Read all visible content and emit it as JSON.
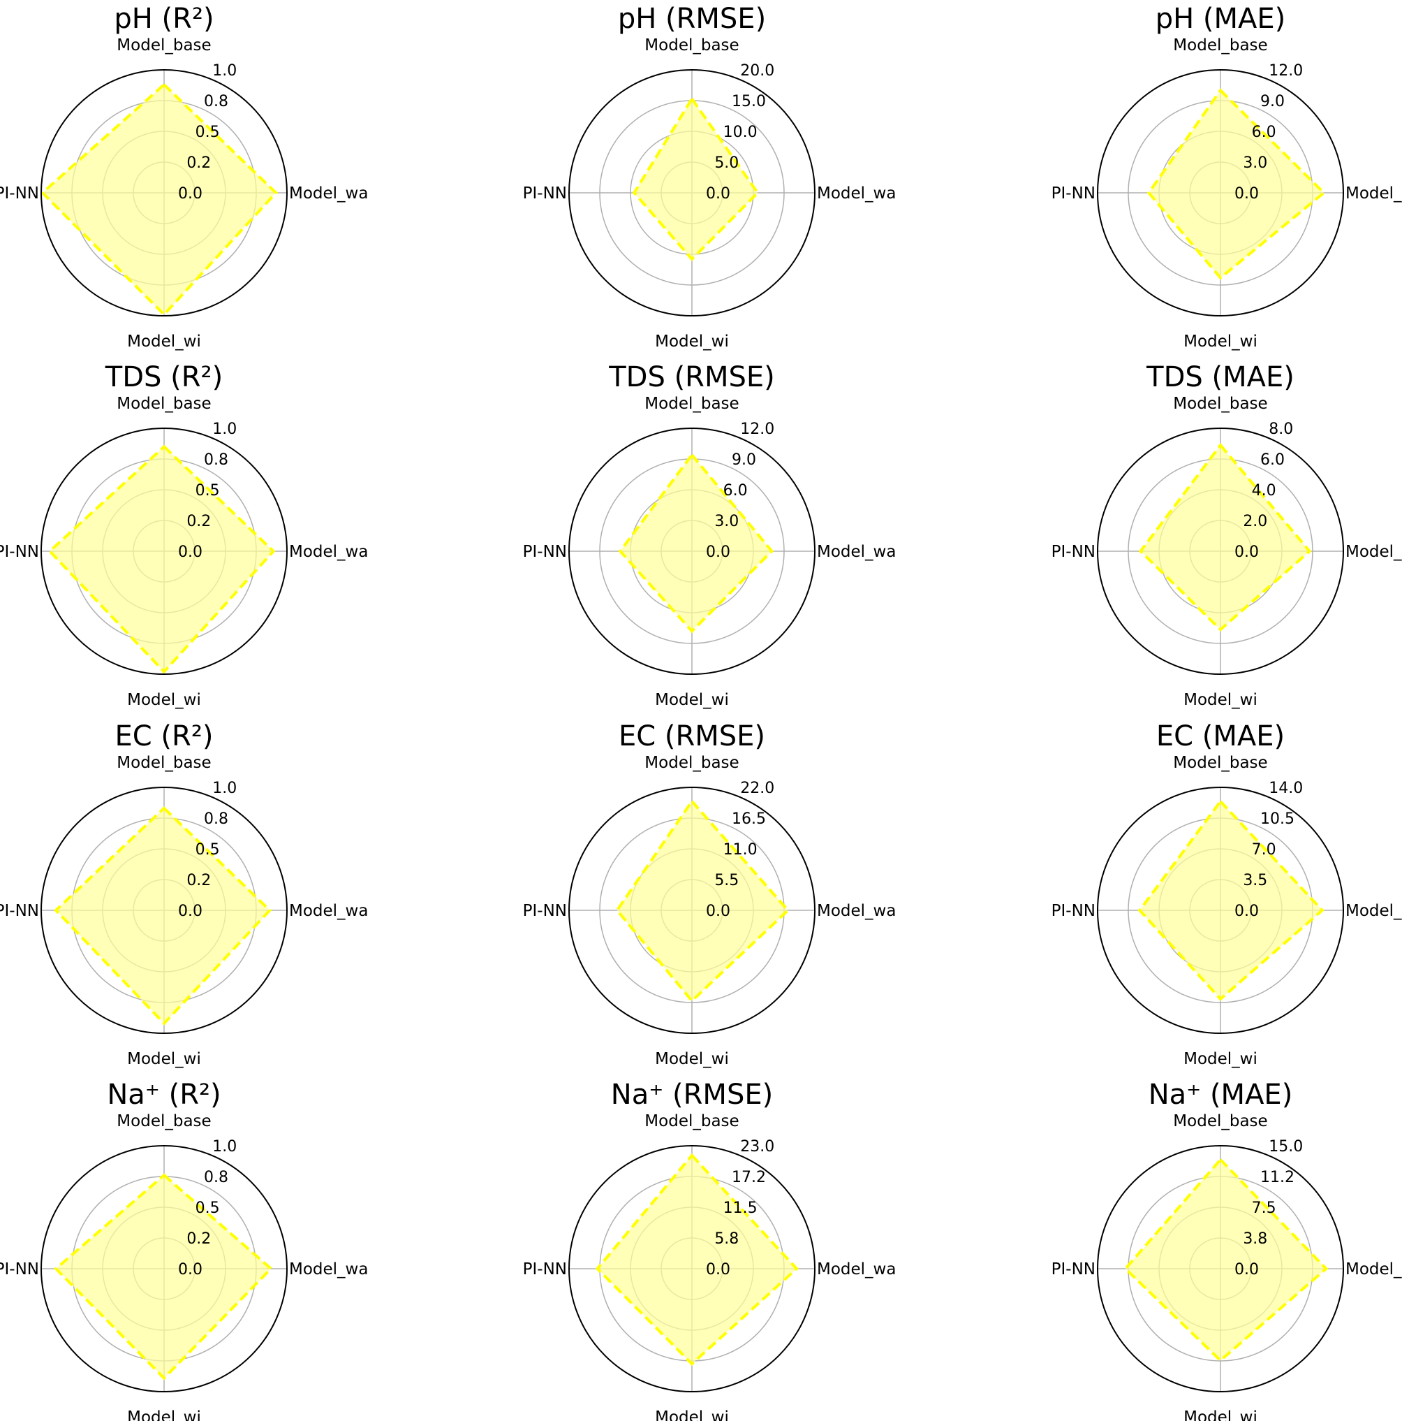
{
  "colors": {
    "fill": "#ffff99",
    "line": "#ffff00",
    "grid": "#b0b0b0",
    "outline": "#000000"
  },
  "chart_data": [
    {
      "type": "radar",
      "title": "pH (R²)",
      "metric": "R²",
      "categories": [
        "Model_base",
        "Model_wa",
        "Model_wi",
        "PI-NN"
      ],
      "values": [
        0.88,
        0.91,
        0.99,
        0.99
      ],
      "rlim": [
        0,
        1.0
      ],
      "tick_values": [
        0.0,
        0.25,
        0.5,
        0.75,
        1.0
      ],
      "tick_labels": [
        "0.0",
        "0.2",
        "0.5",
        "0.8",
        "1.0"
      ]
    },
    {
      "type": "radar",
      "title": "pH (RMSE)",
      "metric": "RMSE",
      "categories": [
        "Model_base",
        "Model_wa",
        "Model_wi",
        "PI-NN"
      ],
      "values": [
        15.3,
        10.7,
        10.8,
        9.4
      ],
      "rlim": [
        0,
        20.0
      ],
      "tick_values": [
        0.0,
        5.0,
        10.0,
        15.0,
        20.0
      ],
      "tick_labels": [
        "0.0",
        "5.0",
        "10.0",
        "15.0",
        "20.0"
      ]
    },
    {
      "type": "radar",
      "title": "pH (MAE)",
      "metric": "MAE",
      "categories": [
        "Model_base",
        "Model_wa",
        "Model_wi",
        "PI-NN"
      ],
      "values": [
        10.0,
        10.1,
        8.3,
        7.0
      ],
      "rlim": [
        0,
        12.0
      ],
      "tick_values": [
        0.0,
        3.0,
        6.0,
        9.0,
        12.0
      ],
      "tick_labels": [
        "0.0",
        "3.0",
        "6.0",
        "9.0",
        "12.0"
      ]
    },
    {
      "type": "radar",
      "title": "TDS (R²)",
      "metric": "R²",
      "categories": [
        "Model_base",
        "Model_wa",
        "Model_wi",
        "PI-NN"
      ],
      "values": [
        0.85,
        0.89,
        0.98,
        0.93
      ],
      "rlim": [
        0,
        1.0
      ],
      "tick_values": [
        0.0,
        0.25,
        0.5,
        0.75,
        1.0
      ],
      "tick_labels": [
        "0.0",
        "0.2",
        "0.5",
        "0.8",
        "1.0"
      ]
    },
    {
      "type": "radar",
      "title": "TDS (RMSE)",
      "metric": "RMSE",
      "categories": [
        "Model_base",
        "Model_wa",
        "Model_wi",
        "PI-NN"
      ],
      "values": [
        9.4,
        7.8,
        7.8,
        7.0
      ],
      "rlim": [
        0,
        12.0
      ],
      "tick_values": [
        0.0,
        3.0,
        6.0,
        9.0,
        12.0
      ],
      "tick_labels": [
        "0.0",
        "3.0",
        "6.0",
        "9.0",
        "12.0"
      ]
    },
    {
      "type": "radar",
      "title": "TDS (MAE)",
      "metric": "MAE",
      "categories": [
        "Model_base",
        "Model_wa",
        "Model_wi",
        "PI-NN"
      ],
      "values": [
        6.9,
        5.8,
        5.1,
        5.2
      ],
      "rlim": [
        0,
        8.0
      ],
      "tick_values": [
        0.0,
        2.0,
        4.0,
        6.0,
        8.0
      ],
      "tick_labels": [
        "0.0",
        "2.0",
        "4.0",
        "6.0",
        "8.0"
      ]
    },
    {
      "type": "radar",
      "title": "EC (R²)",
      "metric": "R²",
      "categories": [
        "Model_base",
        "Model_wa",
        "Model_wi",
        "PI-NN"
      ],
      "values": [
        0.83,
        0.86,
        0.92,
        0.88
      ],
      "rlim": [
        0,
        1.0
      ],
      "tick_values": [
        0.0,
        0.25,
        0.5,
        0.75,
        1.0
      ],
      "tick_labels": [
        "0.0",
        "0.2",
        "0.5",
        "0.8",
        "1.0"
      ]
    },
    {
      "type": "radar",
      "title": "EC (RMSE)",
      "metric": "RMSE",
      "categories": [
        "Model_base",
        "Model_wa",
        "Model_wi",
        "PI-NN"
      ],
      "values": [
        19.5,
        17.2,
        16.2,
        13.4
      ],
      "rlim": [
        0,
        22.0
      ],
      "tick_values": [
        0.0,
        5.5,
        11.0,
        16.5,
        22.0
      ],
      "tick_labels": [
        "0.0",
        "5.5",
        "11.0",
        "16.5",
        "22.0"
      ]
    },
    {
      "type": "radar",
      "title": "EC (MAE)",
      "metric": "MAE",
      "categories": [
        "Model_base",
        "Model_wa",
        "Model_wi",
        "PI-NN"
      ],
      "values": [
        12.4,
        11.6,
        10.1,
        9.2
      ],
      "rlim": [
        0,
        14.0
      ],
      "tick_values": [
        0.0,
        3.5,
        7.0,
        10.5,
        14.0
      ],
      "tick_labels": [
        "0.0",
        "3.5",
        "7.0",
        "10.5",
        "14.0"
      ]
    },
    {
      "type": "radar",
      "title": "Na⁺ (R²)",
      "metric": "R²",
      "categories": [
        "Model_base",
        "Model_wa",
        "Model_wi",
        "PI-NN"
      ],
      "values": [
        0.76,
        0.87,
        0.89,
        0.88
      ],
      "rlim": [
        0,
        1.0
      ],
      "tick_values": [
        0.0,
        0.25,
        0.5,
        0.75,
        1.0
      ],
      "tick_labels": [
        "0.0",
        "0.2",
        "0.5",
        "0.8",
        "1.0"
      ]
    },
    {
      "type": "radar",
      "title": "Na⁺ (RMSE)",
      "metric": "RMSE",
      "categories": [
        "Model_base",
        "Model_wa",
        "Model_wi",
        "PI-NN"
      ],
      "values": [
        21.2,
        19.6,
        17.8,
        17.7
      ],
      "rlim": [
        0,
        23.0
      ],
      "tick_values": [
        0.0,
        5.75,
        11.5,
        17.25,
        23.0
      ],
      "tick_labels": [
        "0.0",
        "5.8",
        "11.5",
        "17.2",
        "23.0"
      ]
    },
    {
      "type": "radar",
      "title": "Na⁺ (MAE)",
      "metric": "MAE",
      "categories": [
        "Model_base",
        "Model_wa",
        "Model_wi",
        "PI-NN"
      ],
      "values": [
        13.3,
        12.9,
        11.2,
        11.6
      ],
      "rlim": [
        0,
        15.0
      ],
      "tick_values": [
        0.0,
        3.75,
        7.5,
        11.25,
        15.0
      ],
      "tick_labels": [
        "0.0",
        "3.8",
        "7.5",
        "11.2",
        "15.0"
      ]
    }
  ]
}
